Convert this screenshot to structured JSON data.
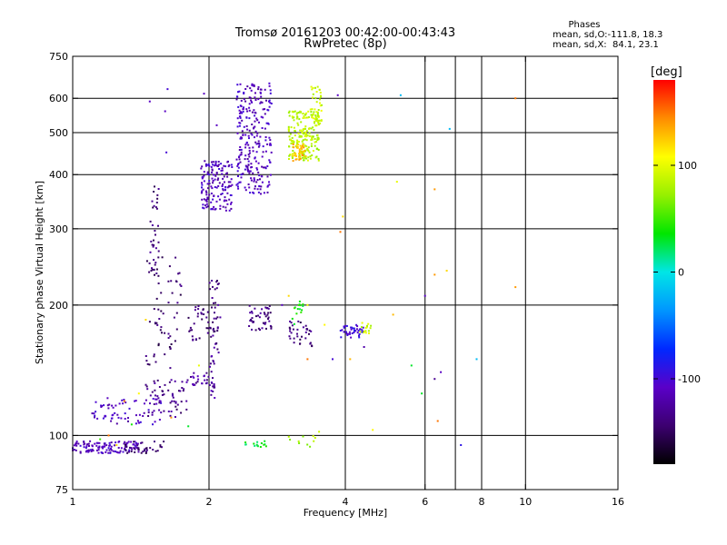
{
  "header": {
    "title_line1": "Tromsø 20161203 00:42:00-00:43:43",
    "title_line2": "RwPretec (8p)",
    "phases_heading": "Phases",
    "phases_o": "mean, sd,O:-111.8, 18.3",
    "phases_x": "mean, sd,X:  84.1, 23.1"
  },
  "chart_data": {
    "type": "scatter",
    "xlabel": "Frequency [MHz]",
    "ylabel": "Stationary phase Virtual Height [km]",
    "xscale": "log",
    "yscale": "log",
    "xlim": [
      1,
      16
    ],
    "ylim": [
      75,
      750
    ],
    "x_ticks": [
      1,
      2,
      4,
      6,
      8,
      10,
      16
    ],
    "x_tick_labels": [
      "1",
      "2",
      "4",
      "6",
      "8",
      "10",
      "16"
    ],
    "y_ticks": [
      75,
      100,
      200,
      300,
      400,
      500,
      600,
      750
    ],
    "y_tick_labels": [
      "75",
      "100",
      "200",
      "300",
      "400",
      "500",
      "600",
      "750"
    ],
    "x_gridlines": [
      2,
      4,
      6,
      7,
      8,
      10
    ],
    "y_gridlines": [
      100,
      200,
      300,
      400,
      500,
      600
    ],
    "grid": true,
    "colorbar": {
      "label": "[deg]",
      "range": [
        -180,
        180
      ],
      "ticks": [
        100,
        0,
        -100
      ],
      "tick_labels": [
        "100",
        "0",
        "-100"
      ]
    },
    "point_groups": [
      {
        "phase": -110,
        "x": [
          1.0,
          1.4
        ],
        "y": [
          91,
          97
        ],
        "n": 120
      },
      {
        "phase": -110,
        "x": [
          1.1,
          1.6
        ],
        "y": [
          106,
          122
        ],
        "n": 70
      },
      {
        "phase": -135,
        "x": [
          1.45,
          1.8
        ],
        "y": [
          110,
          135
        ],
        "n": 55
      },
      {
        "phase": -145,
        "x": [
          1.3,
          1.6
        ],
        "y": [
          91,
          97
        ],
        "n": 35
      },
      {
        "phase": -145,
        "x": [
          1.45,
          1.75
        ],
        "y": [
          140,
          260
        ],
        "n": 60
      },
      {
        "phase": -140,
        "x": [
          1.48,
          1.55
        ],
        "y": [
          210,
          390
        ],
        "n": 35
      },
      {
        "phase": -140,
        "x": [
          1.8,
          2.0
        ],
        "y": [
          165,
          200
        ],
        "n": 30
      },
      {
        "phase": -125,
        "x": [
          1.78,
          2.0
        ],
        "y": [
          130,
          140
        ],
        "n": 25
      },
      {
        "phase": -135,
        "x": [
          2.0,
          2.12
        ],
        "y": [
          140,
          230
        ],
        "n": 40
      },
      {
        "phase": -120,
        "x": [
          2.0,
          2.06
        ],
        "y": [
          120,
          160
        ],
        "n": 20
      },
      {
        "phase": -110,
        "x": [
          1.92,
          2.25
        ],
        "y": [
          330,
          430
        ],
        "n": 150
      },
      {
        "phase": -110,
        "x": [
          2.3,
          2.75
        ],
        "y": [
          360,
          650
        ],
        "n": 260
      },
      {
        "phase": -135,
        "x": [
          2.45,
          2.75
        ],
        "y": [
          175,
          200
        ],
        "n": 45
      },
      {
        "phase": -140,
        "x": [
          3.0,
          3.4
        ],
        "y": [
          160,
          185
        ],
        "n": 35
      },
      {
        "phase": 40,
        "x": [
          3.05,
          3.3
        ],
        "y": [
          180,
          205
        ],
        "n": 15
      },
      {
        "phase": 85,
        "x": [
          3.0,
          3.5
        ],
        "y": [
          430,
          560
        ],
        "n": 200
      },
      {
        "phase": 130,
        "x": [
          3.05,
          3.3
        ],
        "y": [
          430,
          470
        ],
        "n": 40
      },
      {
        "phase": 90,
        "x": [
          3.35,
          3.55
        ],
        "y": [
          520,
          640
        ],
        "n": 40
      },
      {
        "phase": 30,
        "x": [
          2.4,
          2.7
        ],
        "y": [
          94,
          97
        ],
        "n": 15
      },
      {
        "phase": 80,
        "x": [
          3.0,
          3.5
        ],
        "y": [
          94,
          100
        ],
        "n": 10
      },
      {
        "phase": -100,
        "x": [
          3.9,
          4.4
        ],
        "y": [
          168,
          180
        ],
        "n": 40
      },
      {
        "phase": 90,
        "x": [
          4.3,
          4.6
        ],
        "y": [
          172,
          182
        ],
        "n": 15
      }
    ],
    "isolated_points": [
      {
        "x": 1.48,
        "y": 590,
        "phase": -110
      },
      {
        "x": 1.6,
        "y": 560,
        "phase": -110
      },
      {
        "x": 1.62,
        "y": 630,
        "phase": -100
      },
      {
        "x": 1.95,
        "y": 615,
        "phase": -110
      },
      {
        "x": 2.08,
        "y": 520,
        "phase": -110
      },
      {
        "x": 1.61,
        "y": 450,
        "phase": -100
      },
      {
        "x": 3.85,
        "y": 610,
        "phase": -110
      },
      {
        "x": 5.3,
        "y": 610,
        "phase": -20
      },
      {
        "x": 6.8,
        "y": 510,
        "phase": -20
      },
      {
        "x": 5.2,
        "y": 385,
        "phase": 100
      },
      {
        "x": 6.3,
        "y": 370,
        "phase": 140
      },
      {
        "x": 3.95,
        "y": 320,
        "phase": 120
      },
      {
        "x": 3.9,
        "y": 295,
        "phase": 150
      },
      {
        "x": 6.3,
        "y": 235,
        "phase": 140
      },
      {
        "x": 6.7,
        "y": 240,
        "phase": 120
      },
      {
        "x": 9.5,
        "y": 220,
        "phase": 140
      },
      {
        "x": 9.5,
        "y": 600,
        "phase": 150
      },
      {
        "x": 6.0,
        "y": 210,
        "phase": -110
      },
      {
        "x": 5.1,
        "y": 190,
        "phase": 130
      },
      {
        "x": 4.1,
        "y": 150,
        "phase": 130
      },
      {
        "x": 5.6,
        "y": 145,
        "phase": 30
      },
      {
        "x": 6.5,
        "y": 140,
        "phase": -110
      },
      {
        "x": 6.3,
        "y": 135,
        "phase": -130
      },
      {
        "x": 7.8,
        "y": 150,
        "phase": -20
      },
      {
        "x": 6.4,
        "y": 108,
        "phase": 150
      },
      {
        "x": 5.9,
        "y": 125,
        "phase": 30
      },
      {
        "x": 7.2,
        "y": 95,
        "phase": -90
      },
      {
        "x": 4.6,
        "y": 103,
        "phase": 110
      },
      {
        "x": 3.5,
        "y": 102,
        "phase": 90
      },
      {
        "x": 3.3,
        "y": 200,
        "phase": 100
      },
      {
        "x": 3.6,
        "y": 180,
        "phase": 110
      },
      {
        "x": 3.0,
        "y": 210,
        "phase": 120
      },
      {
        "x": 2.9,
        "y": 200,
        "phase": -110
      },
      {
        "x": 1.8,
        "y": 105,
        "phase": 30
      },
      {
        "x": 1.9,
        "y": 145,
        "phase": 100
      },
      {
        "x": 1.65,
        "y": 110,
        "phase": 140
      },
      {
        "x": 1.45,
        "y": 185,
        "phase": 120
      },
      {
        "x": 1.4,
        "y": 125,
        "phase": 110
      },
      {
        "x": 1.3,
        "y": 120,
        "phase": 150
      },
      {
        "x": 1.15,
        "y": 98,
        "phase": 50
      },
      {
        "x": 1.25,
        "y": 95,
        "phase": 120
      },
      {
        "x": 1.2,
        "y": 100,
        "phase": 150
      },
      {
        "x": 1.35,
        "y": 106,
        "phase": 40
      },
      {
        "x": 3.75,
        "y": 150,
        "phase": -100
      },
      {
        "x": 4.4,
        "y": 160,
        "phase": -120
      },
      {
        "x": 3.3,
        "y": 150,
        "phase": 150
      }
    ]
  }
}
